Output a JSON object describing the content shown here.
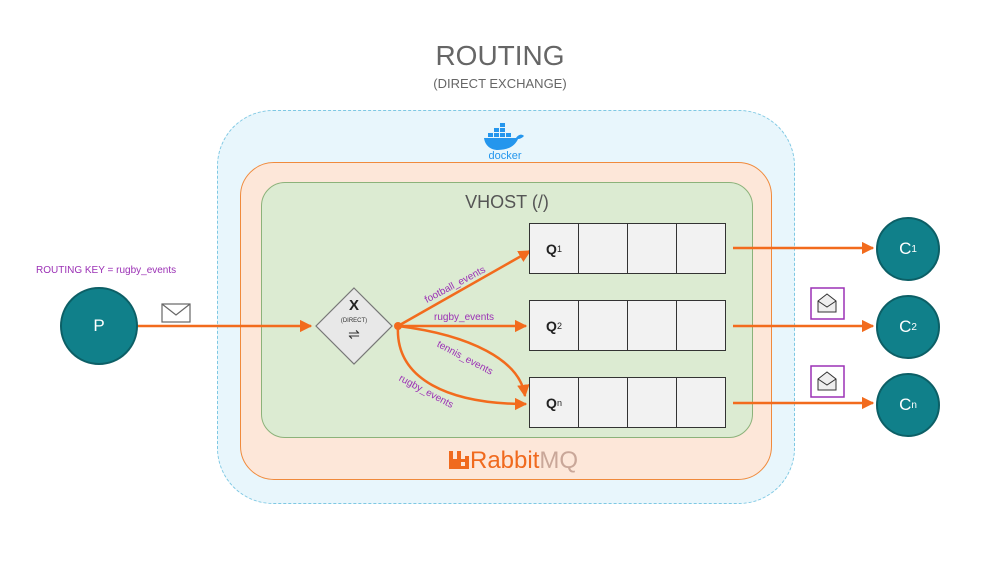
{
  "header": {
    "title": "ROUTING",
    "subtitle": "(DIRECT EXCHANGE)"
  },
  "docker": {
    "logo_text": "docker",
    "color": "#2496ed"
  },
  "rabbitmq": {
    "logo_text_main": "Rabbit",
    "logo_text_mq": "MQ",
    "color": "#f06a1e"
  },
  "vhost": {
    "label": "VHOST (/)"
  },
  "producer": {
    "label": "P",
    "routing_key_note": "ROUTING KEY = rugby_events"
  },
  "exchange": {
    "label": "X",
    "type": "(DIRECT)",
    "symbol": "⇌"
  },
  "bindings": [
    {
      "routing_key": "football_events",
      "queue": "Q1"
    },
    {
      "routing_key": "rugby_events",
      "queue": "Q2"
    },
    {
      "routing_key": "tennis_events",
      "queue": "Qn"
    },
    {
      "routing_key": "rugby_events",
      "queue": "Qn"
    }
  ],
  "queues": [
    {
      "label": "Q",
      "sub": "1"
    },
    {
      "label": "Q",
      "sub": "2"
    },
    {
      "label": "Q",
      "sub": "n"
    }
  ],
  "consumers": [
    {
      "label": "C",
      "sub": "1"
    },
    {
      "label": "C",
      "sub": "2"
    },
    {
      "label": "C",
      "sub": "n"
    }
  ],
  "colors": {
    "flow": "#f26b1d",
    "node_fill": "#10808a",
    "routing_key_text": "#9b30b5"
  }
}
